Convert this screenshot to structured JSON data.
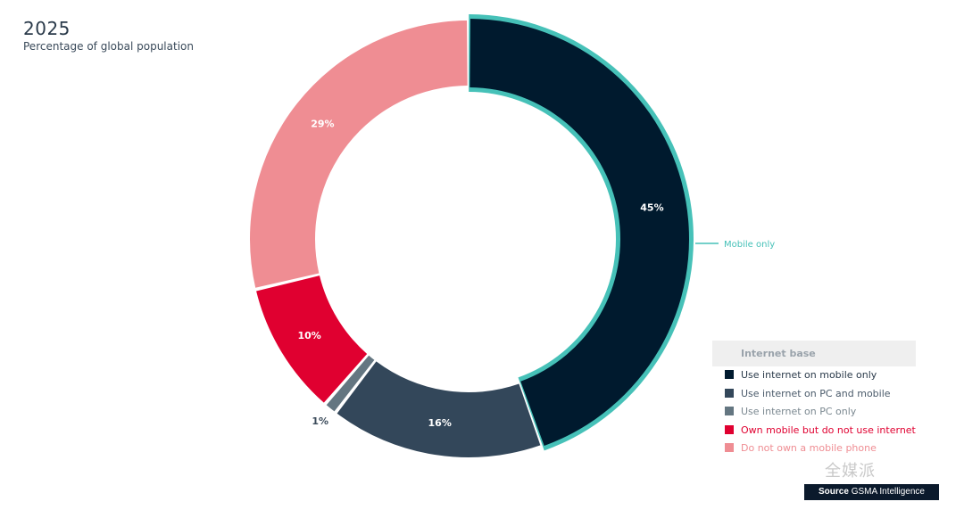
{
  "chart_data": {
    "type": "pie",
    "title": "2025",
    "subtitle": "Percentage of global population",
    "legend_title": "Internet base",
    "legend_placement": "bottom-right",
    "slices": [
      {
        "label": "Use internet on mobile only",
        "value": 45,
        "value_label": "45%",
        "color": "#001a2e",
        "label_color": "#ffffff",
        "highlight": true
      },
      {
        "label": "Use internet on PC and mobile",
        "value": 16,
        "value_label": "16%",
        "color": "#33475a",
        "label_color": "#ffffff"
      },
      {
        "label": "Use internet on PC only",
        "value": 1,
        "value_label": "1%",
        "color": "#647681",
        "label_color": "#3a4a5a"
      },
      {
        "label": "Own mobile but do not use internet",
        "value": 10,
        "value_label": "10%",
        "color": "#e00030",
        "label_color": "#ffffff"
      },
      {
        "label": "Do not own a mobile phone",
        "value": 29,
        "value_label": "29%",
        "color": "#ef8d93",
        "label_color": "#ffffff"
      }
    ],
    "annotation": "Mobile only",
    "annotation_color": "#46c1b8"
  },
  "legend_text_colors": [
    "#2a3a4a",
    "#4a5a6a",
    "#7b8890",
    "#e00030",
    "#ef8d93"
  ],
  "source": {
    "prefix": "Source",
    "name": "GSMA Intelligence"
  },
  "watermark": "全媒派"
}
